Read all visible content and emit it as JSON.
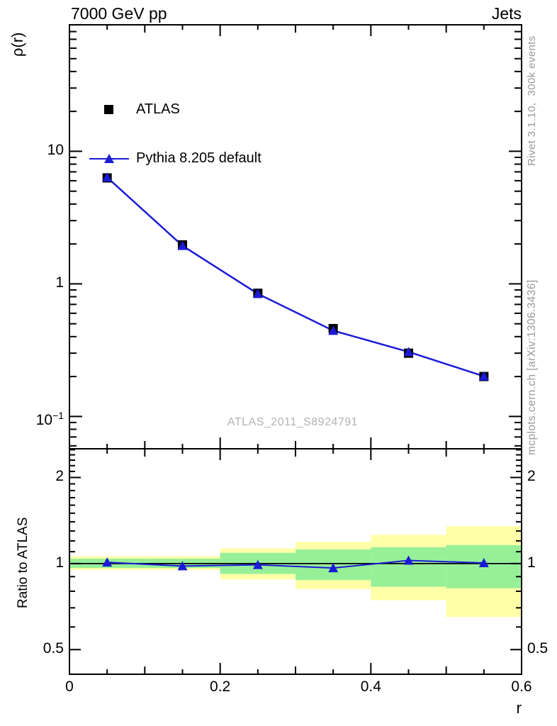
{
  "header": {
    "title_left": "7000 GeV pp",
    "title_right": "Jets"
  },
  "side_notes": {
    "rivet": "Rivet 3.1.10,  300k events",
    "mcplots": "mcplots.cern.ch [arXiv:1306.3436]"
  },
  "watermark": "ATLAS_2011_S8924791",
  "legend": {
    "items": [
      {
        "label": "ATLAS",
        "marker": "square"
      },
      {
        "label": "Pythia 8.205 default",
        "marker": "triangle-line"
      }
    ]
  },
  "colors": {
    "data_black": "#000000",
    "mc_blue": "#1b1bd6",
    "band_outer_yellow": "#ffffa8",
    "band_inner_green": "#97f098",
    "side_text_gray": "#999999",
    "watermark_gray": "#b2b2b2"
  },
  "chart_data": [
    {
      "type": "line",
      "panel": "main",
      "title": "",
      "xlabel": "r",
      "ylabel": "ρ(r)",
      "xlim": [
        0,
        0.6
      ],
      "ylim": [
        0.057,
        90
      ],
      "yscale": "log",
      "grid": false,
      "legend_position": "top-left",
      "x": [
        0.05,
        0.15,
        0.25,
        0.35,
        0.45,
        0.55
      ],
      "series": [
        {
          "name": "ATLAS",
          "marker": "square",
          "color": "#000000",
          "values": [
            6.3,
            1.97,
            0.85,
            0.46,
            0.3,
            0.2
          ]
        },
        {
          "name": "Pythia 8.205 default",
          "marker": "triangle",
          "color": "#1b1bd6",
          "values": [
            6.36,
            1.94,
            0.842,
            0.444,
            0.307,
            0.201
          ]
        }
      ],
      "yticks": [
        {
          "label": "10",
          "value": 10
        },
        {
          "label": "1",
          "value": 1
        },
        {
          "label": "10",
          "sup": "−1",
          "value": 0.1
        }
      ],
      "xticks": [
        {
          "label": "0",
          "value": 0
        },
        {
          "label": "0.2",
          "value": 0.2
        },
        {
          "label": "0.4",
          "value": 0.4
        },
        {
          "label": "0.6",
          "value": 0.6
        }
      ]
    },
    {
      "type": "ratio",
      "panel": "ratio",
      "ylabel": "Ratio to ATLAS",
      "ylim": [
        0.41,
        2.52
      ],
      "yscale": "log",
      "reference_line": 1,
      "x": [
        0.05,
        0.15,
        0.25,
        0.35,
        0.45,
        0.55
      ],
      "values": [
        1.01,
        0.98,
        0.99,
        0.965,
        1.025,
        1.005
      ],
      "color": "#1b1bd6",
      "bands": [
        {
          "x": [
            0.0,
            0.1
          ],
          "outer": [
            0.95,
            1.06
          ],
          "inner": [
            0.965,
            1.04
          ]
        },
        {
          "x": [
            0.1,
            0.2
          ],
          "outer": [
            0.95,
            1.06
          ],
          "inner": [
            0.965,
            1.04
          ]
        },
        {
          "x": [
            0.2,
            0.3
          ],
          "outer": [
            0.88,
            1.13
          ],
          "inner": [
            0.92,
            1.09
          ]
        },
        {
          "x": [
            0.3,
            0.4
          ],
          "outer": [
            0.815,
            1.19
          ],
          "inner": [
            0.875,
            1.12
          ]
        },
        {
          "x": [
            0.4,
            0.5
          ],
          "outer": [
            0.745,
            1.26
          ],
          "inner": [
            0.83,
            1.14
          ]
        },
        {
          "x": [
            0.5,
            0.6
          ],
          "outer": [
            0.65,
            1.35
          ],
          "inner": [
            0.82,
            1.16
          ]
        }
      ],
      "yticks": [
        {
          "label": "2",
          "value": 2
        },
        {
          "label": "1",
          "value": 1
        },
        {
          "label": "0.5",
          "value": 0.5
        }
      ]
    }
  ]
}
